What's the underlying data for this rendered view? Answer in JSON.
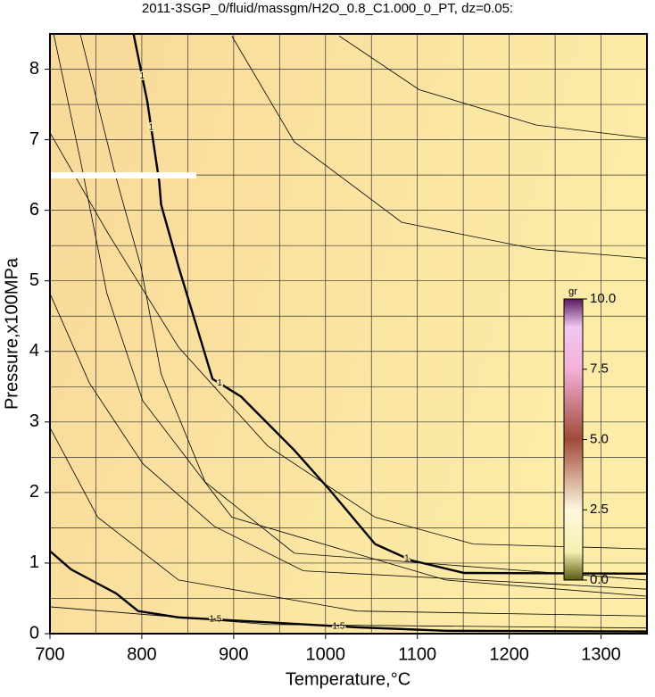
{
  "chart_data": {
    "type": "contour",
    "title": "2011-3SGP_0/fluid/massgm/H2O_0.8_C1.000_0_PT, dz=0.05:",
    "x_label": "Temperature,°C",
    "y_label": "Pressure,x100MPa",
    "xlim": [
      700,
      1350
    ],
    "ylim": [
      0,
      8.5
    ],
    "xticks": [
      700,
      800,
      900,
      1000,
      1100,
      1200,
      1300
    ],
    "yticks": [
      0,
      1,
      2,
      3,
      4,
      5,
      6,
      7,
      8
    ],
    "xgrid": [
      700,
      750,
      800,
      850,
      900,
      950,
      1000,
      1050,
      1100,
      1150,
      1200,
      1250,
      1300,
      1350
    ],
    "ygrid": [
      0,
      0.5,
      1,
      1.5,
      2,
      2.5,
      3,
      3.5,
      4,
      4.5,
      5,
      5.5,
      6,
      6.5,
      7,
      7.5,
      8,
      8.5
    ],
    "grid": true,
    "contours": [
      {
        "level": 1,
        "label": "1",
        "bold": true,
        "x": [
          791,
          806,
          819,
          821,
          840,
          877,
          908,
          966,
          1005,
          1054,
          1093,
          1151,
          1350
        ],
        "y": [
          8.5,
          7.54,
          6.4,
          6.08,
          5.2,
          3.61,
          3.36,
          2.6,
          2.03,
          1.27,
          1.04,
          0.86,
          0.85
        ]
      },
      {
        "level": 1.5,
        "label": "1.5",
        "bold": true,
        "x": [
          700,
          723,
          772,
          796,
          840,
          937,
          1034,
          1131,
          1350
        ],
        "y": [
          1.17,
          0.91,
          0.57,
          0.32,
          0.23,
          0.16,
          0.09,
          0.04,
          0.03
        ]
      },
      {
        "x": [
          1015,
          1102,
          1229,
          1350
        ],
        "y": [
          8.47,
          7.71,
          7.21,
          7.02
        ]
      },
      {
        "x": [
          898,
          966,
          1083,
          1229,
          1350
        ],
        "y": [
          8.47,
          6.97,
          5.83,
          5.45,
          5.32
        ]
      },
      {
        "x": [
          700,
          762,
          840,
          937,
          1054,
          1161,
          1350
        ],
        "y": [
          7.1,
          5.7,
          4.06,
          2.66,
          1.65,
          1.27,
          1.2
        ]
      },
      {
        "x": [
          700,
          743,
          801,
          879,
          976,
          1350
        ],
        "y": [
          4.82,
          3.55,
          2.41,
          1.52,
          0.89,
          0.63
        ]
      },
      {
        "x": [
          700,
          752,
          840,
          1034,
          1350
        ],
        "y": [
          2.92,
          1.65,
          0.76,
          0.32,
          0.25
        ]
      },
      {
        "x": [
          700,
          937,
          1350
        ],
        "y": [
          0.38,
          0.13,
          0.08
        ]
      },
      {
        "x": [
          733,
          772,
          799,
          821,
          869,
          966,
          1350
        ],
        "y": [
          8.5,
          6.46,
          5.2,
          3.68,
          2.15,
          1.14,
          0.76
        ]
      },
      {
        "x": [
          704,
          733,
          762,
          801,
          898,
          1131,
          1350
        ],
        "y": [
          8.5,
          6.72,
          4.82,
          3.3,
          1.65,
          0.76,
          0.53
        ]
      }
    ],
    "colorbar": {
      "label": "gr",
      "lim": [
        0,
        10
      ],
      "ticks": [
        {
          "value": 0,
          "label": "0.0"
        },
        {
          "value": 2.5,
          "label": "2.5"
        },
        {
          "value": 5,
          "label": "5.0"
        },
        {
          "value": 7.5,
          "label": "7.5"
        },
        {
          "value": 10,
          "label": "10.0"
        }
      ]
    }
  }
}
